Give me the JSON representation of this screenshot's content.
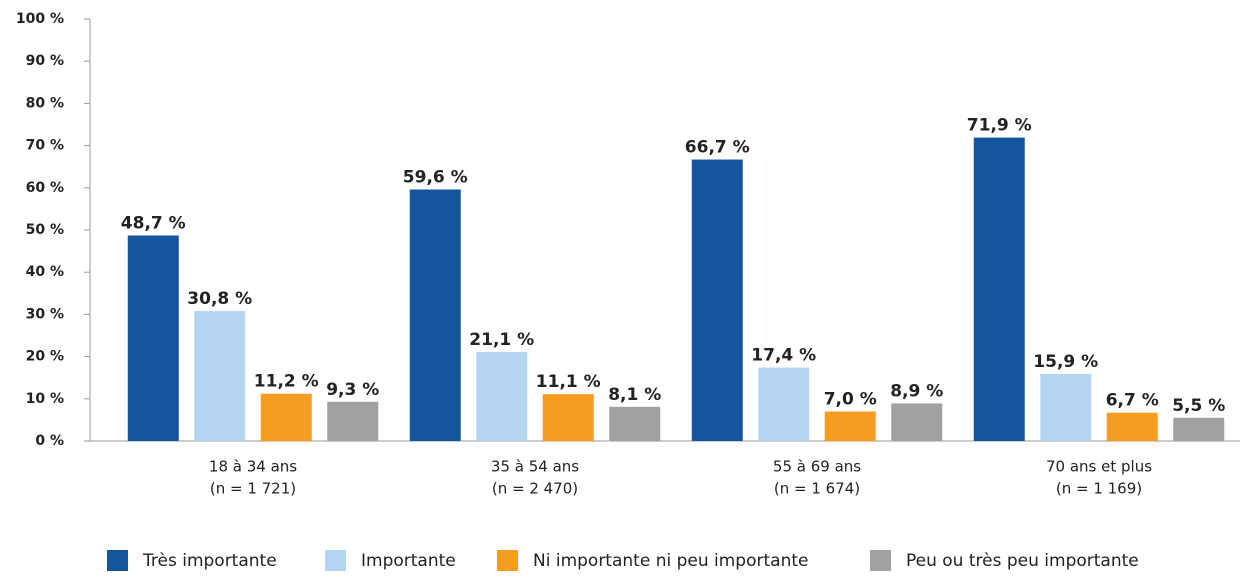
{
  "chart_data": {
    "type": "bar",
    "categories": [
      [
        "18 à 34 ans",
        "(n = 1 721)"
      ],
      [
        "35 à 54 ans",
        "(n = 2 470)"
      ],
      [
        "55 à 69 ans",
        "(n = 1 674)"
      ],
      [
        "70 ans et plus",
        "(n = 1 169)"
      ]
    ],
    "series": [
      {
        "name": "Très importante",
        "color": "#14559e",
        "values": [
          48.7,
          59.6,
          66.7,
          71.9
        ],
        "value_labels": [
          "48,7 %",
          "59,6 %",
          "66,7 %",
          "71,9 %"
        ]
      },
      {
        "name": "Importante",
        "color": "#b4d5f2",
        "values": [
          30.8,
          21.1,
          17.4,
          15.9
        ],
        "value_labels": [
          "30,8 %",
          "21,1 %",
          "17,4 %",
          "15,9 %"
        ]
      },
      {
        "name": "Ni importante ni peu importante",
        "color": "#f49d21",
        "values": [
          11.2,
          11.1,
          7.0,
          6.7
        ],
        "value_labels": [
          "11,2 %",
          "11,1 %",
          "7,0 %",
          "6,7 %"
        ]
      },
      {
        "name": "Peu ou très peu importante",
        "color": "#a1a1a1",
        "values": [
          9.3,
          8.1,
          8.9,
          5.5
        ],
        "value_labels": [
          "9,3 %",
          "8,1 %",
          "8,9 %",
          "5,5 %"
        ]
      }
    ],
    "ylim": [
      0,
      100
    ],
    "yticks": [
      {
        "value": 0,
        "label": "0 %"
      },
      {
        "value": 10,
        "label": "10 %"
      },
      {
        "value": 20,
        "label": "20 %"
      },
      {
        "value": 30,
        "label": "30 %"
      },
      {
        "value": 40,
        "label": "40 %"
      },
      {
        "value": 50,
        "label": "50 %"
      },
      {
        "value": 60,
        "label": "60 %"
      },
      {
        "value": 70,
        "label": "70 %"
      },
      {
        "value": 80,
        "label": "80 %"
      },
      {
        "value": 90,
        "label": "90 %"
      },
      {
        "value": 100,
        "label": "100 %"
      }
    ],
    "legend": "bottom",
    "grid": false
  }
}
